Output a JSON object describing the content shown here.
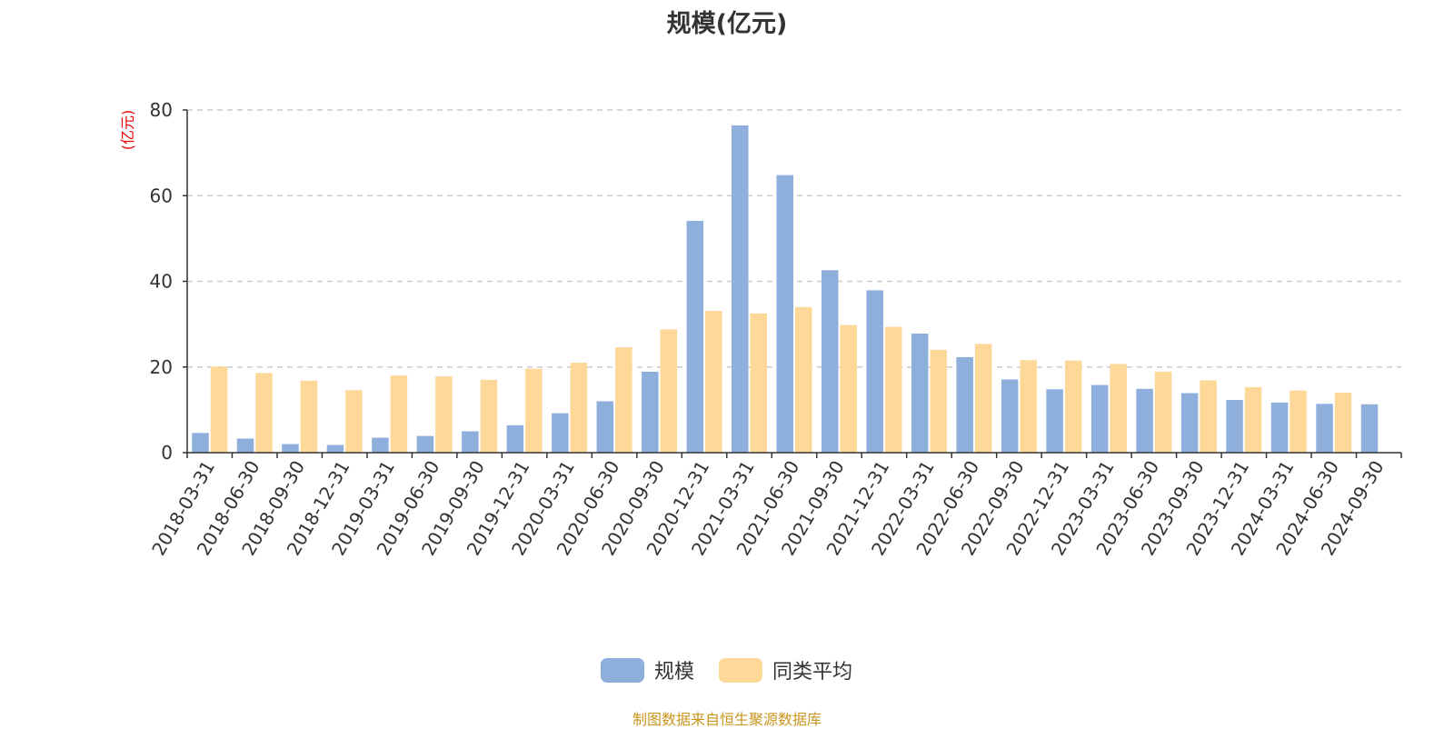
{
  "chart_data": {
    "type": "bar",
    "title": "规模(亿元)",
    "ylabel": "(亿元)",
    "xlabel": "",
    "ylim": [
      0,
      80
    ],
    "yticks": [
      0,
      20,
      40,
      60,
      80
    ],
    "grid": true,
    "legend_position": "bottom-center",
    "categories": [
      "2018-03-31",
      "2018-06-30",
      "2018-09-30",
      "2018-12-31",
      "2019-03-31",
      "2019-06-30",
      "2019-09-30",
      "2019-12-31",
      "2020-03-31",
      "2020-06-30",
      "2020-09-30",
      "2020-12-31",
      "2021-03-31",
      "2021-06-30",
      "2021-09-30",
      "2021-12-31",
      "2022-03-31",
      "2022-06-30",
      "2022-09-30",
      "2022-12-31",
      "2023-03-31",
      "2023-06-30",
      "2023-09-30",
      "2023-12-31",
      "2024-03-31",
      "2024-06-30",
      "2024-09-30"
    ],
    "series": [
      {
        "name": "规模",
        "color": "#8eafdc",
        "values": [
          4.6,
          3.3,
          2.0,
          1.8,
          3.5,
          3.9,
          5.0,
          6.4,
          9.2,
          12.0,
          18.9,
          54.1,
          76.4,
          64.8,
          42.6,
          37.9,
          27.8,
          22.3,
          17.1,
          14.8,
          15.8,
          14.9,
          13.9,
          12.3,
          11.7,
          11.4,
          11.3
        ]
      },
      {
        "name": "同类平均",
        "color": "#fdd898",
        "values": [
          20.1,
          18.6,
          16.8,
          14.6,
          18.0,
          17.8,
          17.0,
          19.6,
          21.0,
          24.6,
          28.8,
          33.1,
          32.5,
          34.0,
          29.8,
          29.4,
          24.0,
          25.4,
          21.6,
          21.5,
          20.7,
          18.9,
          16.9,
          15.3,
          14.5,
          14.0,
          null
        ]
      }
    ]
  },
  "footer": {
    "source_note": "制图数据来自恒生聚源数据库"
  }
}
